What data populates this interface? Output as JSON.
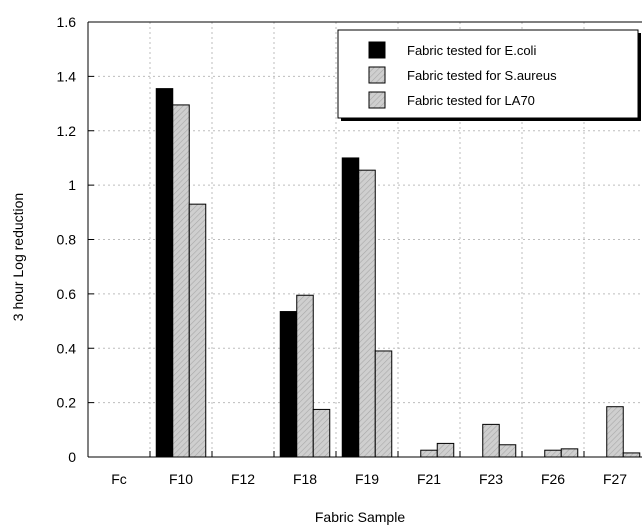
{
  "chart_data": {
    "type": "bar",
    "title": "",
    "xlabel": "Fabric Sample",
    "ylabel": "3 hour Log reduction",
    "ylim": [
      0,
      1.6
    ],
    "yticks": [
      "0",
      "0.2",
      "0.4",
      "0.6",
      "0.8",
      "1",
      "1.2",
      "1.4",
      "1.6"
    ],
    "grid": true,
    "legend_position": "top-right",
    "categories": [
      "Fc",
      "F10",
      "F12",
      "F18",
      "F19",
      "F21",
      "F23",
      "F26",
      "F27"
    ],
    "series": [
      {
        "name": "Fabric tested for E.coli",
        "fill": "#000000",
        "pattern": "solid",
        "values": [
          0,
          1.355,
          0,
          0.535,
          1.1,
          0,
          0,
          0,
          0
        ]
      },
      {
        "name": "Fabric tested for S.aureus",
        "fill": "#c8c8c8",
        "pattern": "hatched",
        "values": [
          0,
          1.295,
          0,
          0.595,
          1.055,
          0.025,
          0.12,
          0.025,
          0.185
        ]
      },
      {
        "name": "Fabric tested for LA70",
        "fill": "#c8c8c8",
        "pattern": "hatched",
        "values": [
          0,
          0.93,
          0,
          0.175,
          0.39,
          0.05,
          0.045,
          0.03,
          0.015
        ]
      }
    ]
  }
}
